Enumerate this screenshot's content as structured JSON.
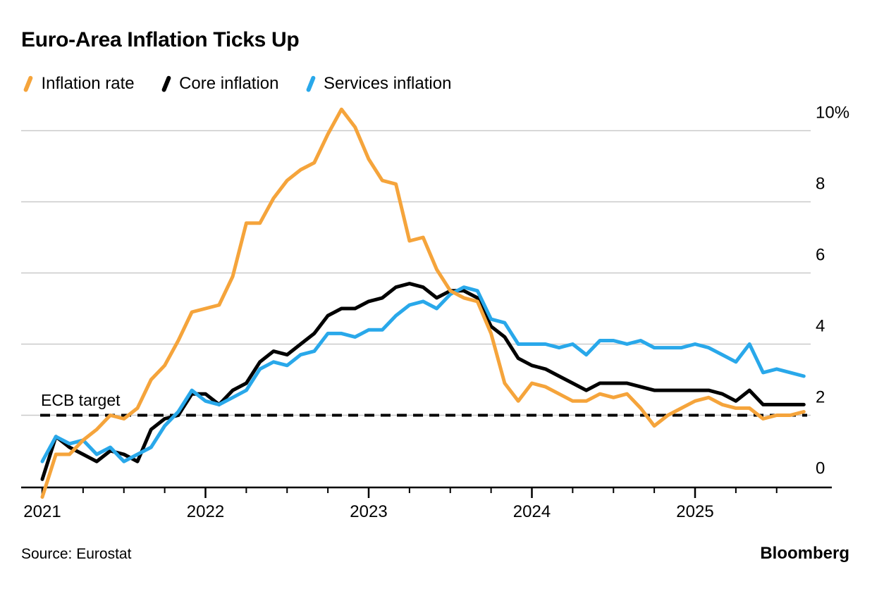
{
  "header": {
    "title": "Euro-Area Inflation Ticks Up"
  },
  "legend": [
    {
      "label": "Inflation rate",
      "color": "#F5A43B"
    },
    {
      "label": "Core inflation",
      "color": "#000000"
    },
    {
      "label": "Services inflation",
      "color": "#29A8EA"
    }
  ],
  "annotation": {
    "ecb_target_label": "ECB target"
  },
  "footer": {
    "source": "Source: Eurostat",
    "brand": "Bloomberg"
  },
  "chart_data": {
    "type": "line",
    "title": "Euro-Area Inflation Ticks Up",
    "x_unit": "month",
    "x_start": "2020-12",
    "x_end": "2025-08",
    "months": [
      "2020-12",
      "2021-01",
      "2021-02",
      "2021-03",
      "2021-04",
      "2021-05",
      "2021-06",
      "2021-07",
      "2021-08",
      "2021-09",
      "2021-10",
      "2021-11",
      "2021-12",
      "2022-01",
      "2022-02",
      "2022-03",
      "2022-04",
      "2022-05",
      "2022-06",
      "2022-07",
      "2022-08",
      "2022-09",
      "2022-10",
      "2022-11",
      "2022-12",
      "2023-01",
      "2023-02",
      "2023-03",
      "2023-04",
      "2023-05",
      "2023-06",
      "2023-07",
      "2023-08",
      "2023-09",
      "2023-10",
      "2023-11",
      "2023-12",
      "2024-01",
      "2024-02",
      "2024-03",
      "2024-04",
      "2024-05",
      "2024-06",
      "2024-07",
      "2024-08",
      "2024-09",
      "2024-10",
      "2024-11",
      "2024-12",
      "2025-01",
      "2025-02",
      "2025-03",
      "2025-04",
      "2025-05",
      "2025-06",
      "2025-07",
      "2025-08"
    ],
    "series": [
      {
        "name": "Inflation rate",
        "color": "#F5A43B",
        "values": [
          -0.3,
          0.9,
          0.9,
          1.3,
          1.6,
          2.0,
          1.9,
          2.2,
          3.0,
          3.4,
          4.1,
          4.9,
          5.0,
          5.1,
          5.9,
          7.4,
          7.4,
          8.1,
          8.6,
          8.9,
          9.1,
          9.9,
          10.6,
          10.1,
          9.2,
          8.6,
          8.5,
          6.9,
          7.0,
          6.1,
          5.5,
          5.3,
          5.2,
          4.3,
          2.9,
          2.4,
          2.9,
          2.8,
          2.6,
          2.4,
          2.4,
          2.6,
          2.5,
          2.6,
          2.2,
          1.7,
          2.0,
          2.2,
          2.4,
          2.5,
          2.3,
          2.2,
          2.2,
          1.9,
          2.0,
          2.0,
          2.1
        ]
      },
      {
        "name": "Core inflation",
        "color": "#000000",
        "values": [
          0.2,
          1.4,
          1.1,
          0.9,
          0.7,
          1.0,
          0.9,
          0.7,
          1.6,
          1.9,
          2.0,
          2.6,
          2.6,
          2.3,
          2.7,
          2.9,
          3.5,
          3.8,
          3.7,
          4.0,
          4.3,
          4.8,
          5.0,
          5.0,
          5.2,
          5.3,
          5.6,
          5.7,
          5.6,
          5.3,
          5.5,
          5.5,
          5.3,
          4.5,
          4.2,
          3.6,
          3.4,
          3.3,
          3.1,
          2.9,
          2.7,
          2.9,
          2.9,
          2.9,
          2.8,
          2.7,
          2.7,
          2.7,
          2.7,
          2.7,
          2.6,
          2.4,
          2.7,
          2.3,
          2.3,
          2.3,
          2.3
        ]
      },
      {
        "name": "Services inflation",
        "color": "#29A8EA",
        "values": [
          0.7,
          1.4,
          1.2,
          1.3,
          0.9,
          1.1,
          0.7,
          0.9,
          1.1,
          1.7,
          2.1,
          2.7,
          2.4,
          2.3,
          2.5,
          2.7,
          3.3,
          3.5,
          3.4,
          3.7,
          3.8,
          4.3,
          4.3,
          4.2,
          4.4,
          4.4,
          4.8,
          5.1,
          5.2,
          5.0,
          5.4,
          5.6,
          5.5,
          4.7,
          4.6,
          4.0,
          4.0,
          4.0,
          3.9,
          4.0,
          3.7,
          4.1,
          4.1,
          4.0,
          4.1,
          3.9,
          3.9,
          3.9,
          4.0,
          3.9,
          3.7,
          3.5,
          4.0,
          3.2,
          3.3,
          3.2,
          3.1
        ]
      }
    ],
    "y_ticks": [
      {
        "label": "10%",
        "value": 10
      },
      {
        "label": "8",
        "value": 8
      },
      {
        "label": "6",
        "value": 6
      },
      {
        "label": "4",
        "value": 4
      },
      {
        "label": "2",
        "value": 2
      },
      {
        "label": "0",
        "value": 0
      }
    ],
    "year_ticks": [
      {
        "label": "2021",
        "month_index": 0
      },
      {
        "label": "2022",
        "month_index": 12
      },
      {
        "label": "2023",
        "month_index": 24
      },
      {
        "label": "2024",
        "month_index": 36
      },
      {
        "label": "2025",
        "month_index": 48
      }
    ],
    "ylim": [
      -0.8,
      10.9
    ],
    "grid": "horizontal",
    "legend_position": "top",
    "reference_line": {
      "label": "ECB target",
      "value": 2,
      "style": "dashed",
      "color": "#000000"
    }
  }
}
